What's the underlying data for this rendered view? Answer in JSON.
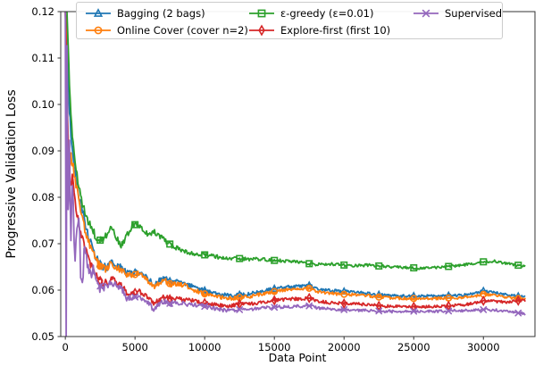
{
  "chart_data": {
    "type": "line",
    "title": "",
    "xlabel": "Data Point",
    "ylabel": "Progressive Validation Loss",
    "xlim": [
      -330,
      33700
    ],
    "ylim": [
      0.05,
      0.12
    ],
    "x_ticks": [
      0,
      5000,
      10000,
      15000,
      20000,
      25000,
      30000
    ],
    "y_ticks": [
      0.05,
      0.06,
      0.07,
      0.08,
      0.09,
      0.1,
      0.11,
      0.12
    ],
    "grid": false,
    "legend_position": "upper center, 3 columns",
    "marker_every": 2500,
    "x": [
      0,
      60,
      120,
      200,
      300,
      400,
      500,
      700,
      900,
      1100,
      1400,
      1700,
      2000,
      2300,
      2600,
      3000,
      3300,
      3700,
      4000,
      4400,
      4800,
      5200,
      5600,
      6000,
      6400,
      6800,
      7200,
      7600,
      8000,
      8500,
      9000,
      9500,
      10000,
      10900,
      11800,
      12500,
      13200,
      14000,
      15000,
      16000,
      17000,
      17500,
      18200,
      19000,
      20000,
      21000,
      22000,
      22500,
      23500,
      24500,
      25500,
      26500,
      27500,
      28500,
      29200,
      30000,
      30800,
      31600,
      32400,
      33000
    ],
    "series": [
      {
        "key": "bagging",
        "name": "Bagging (2 bags)",
        "color": "#1f77b4",
        "marker": "triangle-up",
        "values": [
          0.12,
          0.12,
          0.113,
          0.106,
          0.099,
          0.094,
          0.0905,
          0.0855,
          0.0815,
          0.0785,
          0.0745,
          0.0715,
          0.0685,
          0.0664,
          0.0652,
          0.065,
          0.066,
          0.0652,
          0.0649,
          0.0636,
          0.0635,
          0.064,
          0.0634,
          0.0622,
          0.0612,
          0.0622,
          0.0625,
          0.0617,
          0.0618,
          0.0616,
          0.0609,
          0.0602,
          0.0599,
          0.0592,
          0.0588,
          0.059,
          0.0592,
          0.0597,
          0.0603,
          0.0607,
          0.0608,
          0.061,
          0.0602,
          0.0599,
          0.0597,
          0.0595,
          0.0592,
          0.059,
          0.0588,
          0.0587,
          0.0587,
          0.0587,
          0.0588,
          0.0589,
          0.0592,
          0.0598,
          0.0595,
          0.059,
          0.0587,
          0.0585
        ]
      },
      {
        "key": "online_cover",
        "name": "Online Cover (cover n=2)",
        "color": "#ff7f0e",
        "marker": "circle",
        "values": [
          0.12,
          0.115,
          0.104,
          0.092,
          0.0865,
          0.089,
          0.0875,
          0.084,
          0.0805,
          0.0775,
          0.0732,
          0.0705,
          0.0678,
          0.0658,
          0.0648,
          0.0646,
          0.0656,
          0.0648,
          0.0645,
          0.0632,
          0.0631,
          0.0636,
          0.063,
          0.0617,
          0.0607,
          0.0617,
          0.062,
          0.0612,
          0.0613,
          0.0611,
          0.0604,
          0.0597,
          0.0592,
          0.0586,
          0.0582,
          0.0584,
          0.0586,
          0.0591,
          0.0597,
          0.0601,
          0.0602,
          0.0604,
          0.0596,
          0.0593,
          0.0591,
          0.059,
          0.0587,
          0.0585,
          0.0583,
          0.0582,
          0.0582,
          0.0582,
          0.0583,
          0.0584,
          0.0586,
          0.0591,
          0.0589,
          0.0585,
          0.0582,
          0.0581
        ]
      },
      {
        "key": "eps_greedy",
        "name": "ε-greedy (ε=0.01)",
        "color": "#2ca02c",
        "marker": "square",
        "values": [
          0.12,
          0.12,
          0.12,
          0.113,
          0.104,
          0.098,
          0.0935,
          0.0875,
          0.0832,
          0.08,
          0.0768,
          0.0744,
          0.0726,
          0.0713,
          0.0705,
          0.072,
          0.0734,
          0.071,
          0.0697,
          0.0716,
          0.0738,
          0.0744,
          0.0729,
          0.072,
          0.0725,
          0.0716,
          0.0706,
          0.0697,
          0.069,
          0.0683,
          0.0679,
          0.0678,
          0.0676,
          0.0672,
          0.0667,
          0.0668,
          0.0666,
          0.0667,
          0.0664,
          0.0663,
          0.066,
          0.0657,
          0.0655,
          0.0656,
          0.0654,
          0.0653,
          0.0654,
          0.0652,
          0.065,
          0.0649,
          0.0647,
          0.0648,
          0.0651,
          0.0654,
          0.0657,
          0.0661,
          0.0662,
          0.0658,
          0.0654,
          0.0652
        ]
      },
      {
        "key": "explore_first",
        "name": "Explore-first (first 10)",
        "color": "#d62728",
        "marker": "thin-diamond",
        "values": [
          0.12,
          0.112,
          0.101,
          0.0925,
          0.086,
          0.0825,
          0.0843,
          0.079,
          0.0755,
          0.0725,
          0.069,
          0.0663,
          0.0643,
          0.0626,
          0.0617,
          0.0615,
          0.0624,
          0.0616,
          0.0613,
          0.0592,
          0.0591,
          0.0597,
          0.0592,
          0.058,
          0.057,
          0.0582,
          0.0585,
          0.0579,
          0.0581,
          0.058,
          0.0578,
          0.0574,
          0.0572,
          0.0568,
          0.0565,
          0.057,
          0.057,
          0.0574,
          0.0578,
          0.0581,
          0.0581,
          0.0583,
          0.0576,
          0.0573,
          0.0571,
          0.057,
          0.0568,
          0.0566,
          0.0565,
          0.0564,
          0.0564,
          0.0565,
          0.0566,
          0.0568,
          0.0571,
          0.0577,
          0.0576,
          0.0574,
          0.0577,
          0.0578
        ]
      },
      {
        "key": "supervised",
        "name": "Supervised",
        "color": "#9467bd",
        "marker": "x",
        "values": [
          0.12,
          0.05,
          0.108,
          0.078,
          0.09,
          0.07,
          0.082,
          0.068,
          0.074,
          0.0645,
          0.069,
          0.0635,
          0.064,
          0.0612,
          0.0607,
          0.0606,
          0.0616,
          0.0608,
          0.0605,
          0.0583,
          0.0582,
          0.0588,
          0.0582,
          0.057,
          0.0558,
          0.0572,
          0.0576,
          0.057,
          0.0572,
          0.0571,
          0.0569,
          0.0567,
          0.0565,
          0.0559,
          0.0556,
          0.0558,
          0.0558,
          0.0561,
          0.0563,
          0.0565,
          0.0565,
          0.0566,
          0.0561,
          0.0559,
          0.0558,
          0.0557,
          0.0556,
          0.0555,
          0.0554,
          0.0554,
          0.0555,
          0.0554,
          0.0555,
          0.0556,
          0.0556,
          0.0558,
          0.0557,
          0.0554,
          0.0551,
          0.0549
        ]
      }
    ]
  }
}
